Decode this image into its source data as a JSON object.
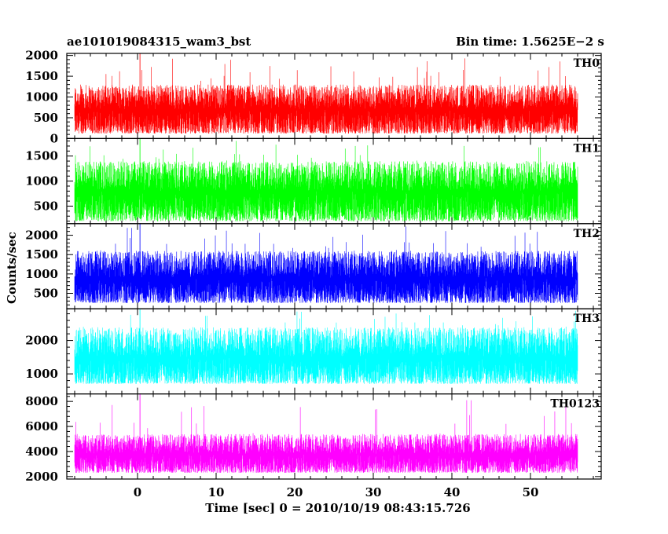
{
  "header": {
    "title_left": "ae101019084315_wam3_bst",
    "title_right": "Bin time: 1.5625E−2 s"
  },
  "chart_data": {
    "type": "line",
    "title": "ae101019084315_wam3_bst",
    "subtitle": "Bin time: 1.5625E−2 s",
    "xlabel": "Time [sec] 0 = 2010/10/19 08:43:15.726",
    "ylabel": "Counts/sec",
    "xlim": [
      -9.0,
      59.0
    ],
    "x_range_data": [
      -8.0,
      56.0
    ],
    "x_ticks": [
      0,
      10,
      20,
      30,
      40,
      50
    ],
    "x_tick_labels": [
      "0",
      "10",
      "20",
      "30",
      "40",
      "50"
    ],
    "grid": false,
    "legend": "none",
    "panels": [
      {
        "name": "TH0",
        "color": "#ff0000",
        "ylim": [
          0,
          2050
        ],
        "y_ticks": [
          0,
          500,
          1000,
          1500,
          2000
        ],
        "y_tick_labels": [
          "0",
          "500",
          "1000",
          "1500",
          "2000"
        ],
        "mean": 700,
        "low": 120,
        "high": 1300,
        "spike_at": 0.3,
        "spike_value": 2050
      },
      {
        "name": "TH1",
        "color": "#00ff00",
        "ylim": [
          150,
          1850
        ],
        "y_ticks": [
          500,
          1000,
          1500
        ],
        "y_tick_labels": [
          "500",
          "1000",
          "1500"
        ],
        "mean": 800,
        "low": 200,
        "high": 1400,
        "spike_at": 0.3,
        "spike_value": 1850
      },
      {
        "name": "TH2",
        "color": "#0000ff",
        "ylim": [
          100,
          2300
        ],
        "y_ticks": [
          500,
          1000,
          1500,
          2000
        ],
        "y_tick_labels": [
          "500",
          "1000",
          "1500",
          "2000"
        ],
        "mean": 900,
        "low": 250,
        "high": 1600,
        "spike_at": 0.3,
        "spike_value": 2300
      },
      {
        "name": "TH3",
        "color": "#00ffff",
        "ylim": [
          400,
          2950
        ],
        "y_ticks": [
          1000,
          2000
        ],
        "y_tick_labels": [
          "1000",
          "2000"
        ],
        "mean": 1500,
        "low": 700,
        "high": 2400,
        "spike_at": 0.3,
        "spike_value": 2950
      },
      {
        "name": "TH0123",
        "color": "#ff00ff",
        "ylim": [
          1800,
          8600
        ],
        "y_ticks": [
          2000,
          4000,
          6000,
          8000
        ],
        "y_tick_labels": [
          "2000",
          "4000",
          "6000",
          "8000"
        ],
        "mean": 3800,
        "low": 2300,
        "high": 5400,
        "spike_at": 0.3,
        "spike_value": 8600
      }
    ]
  }
}
